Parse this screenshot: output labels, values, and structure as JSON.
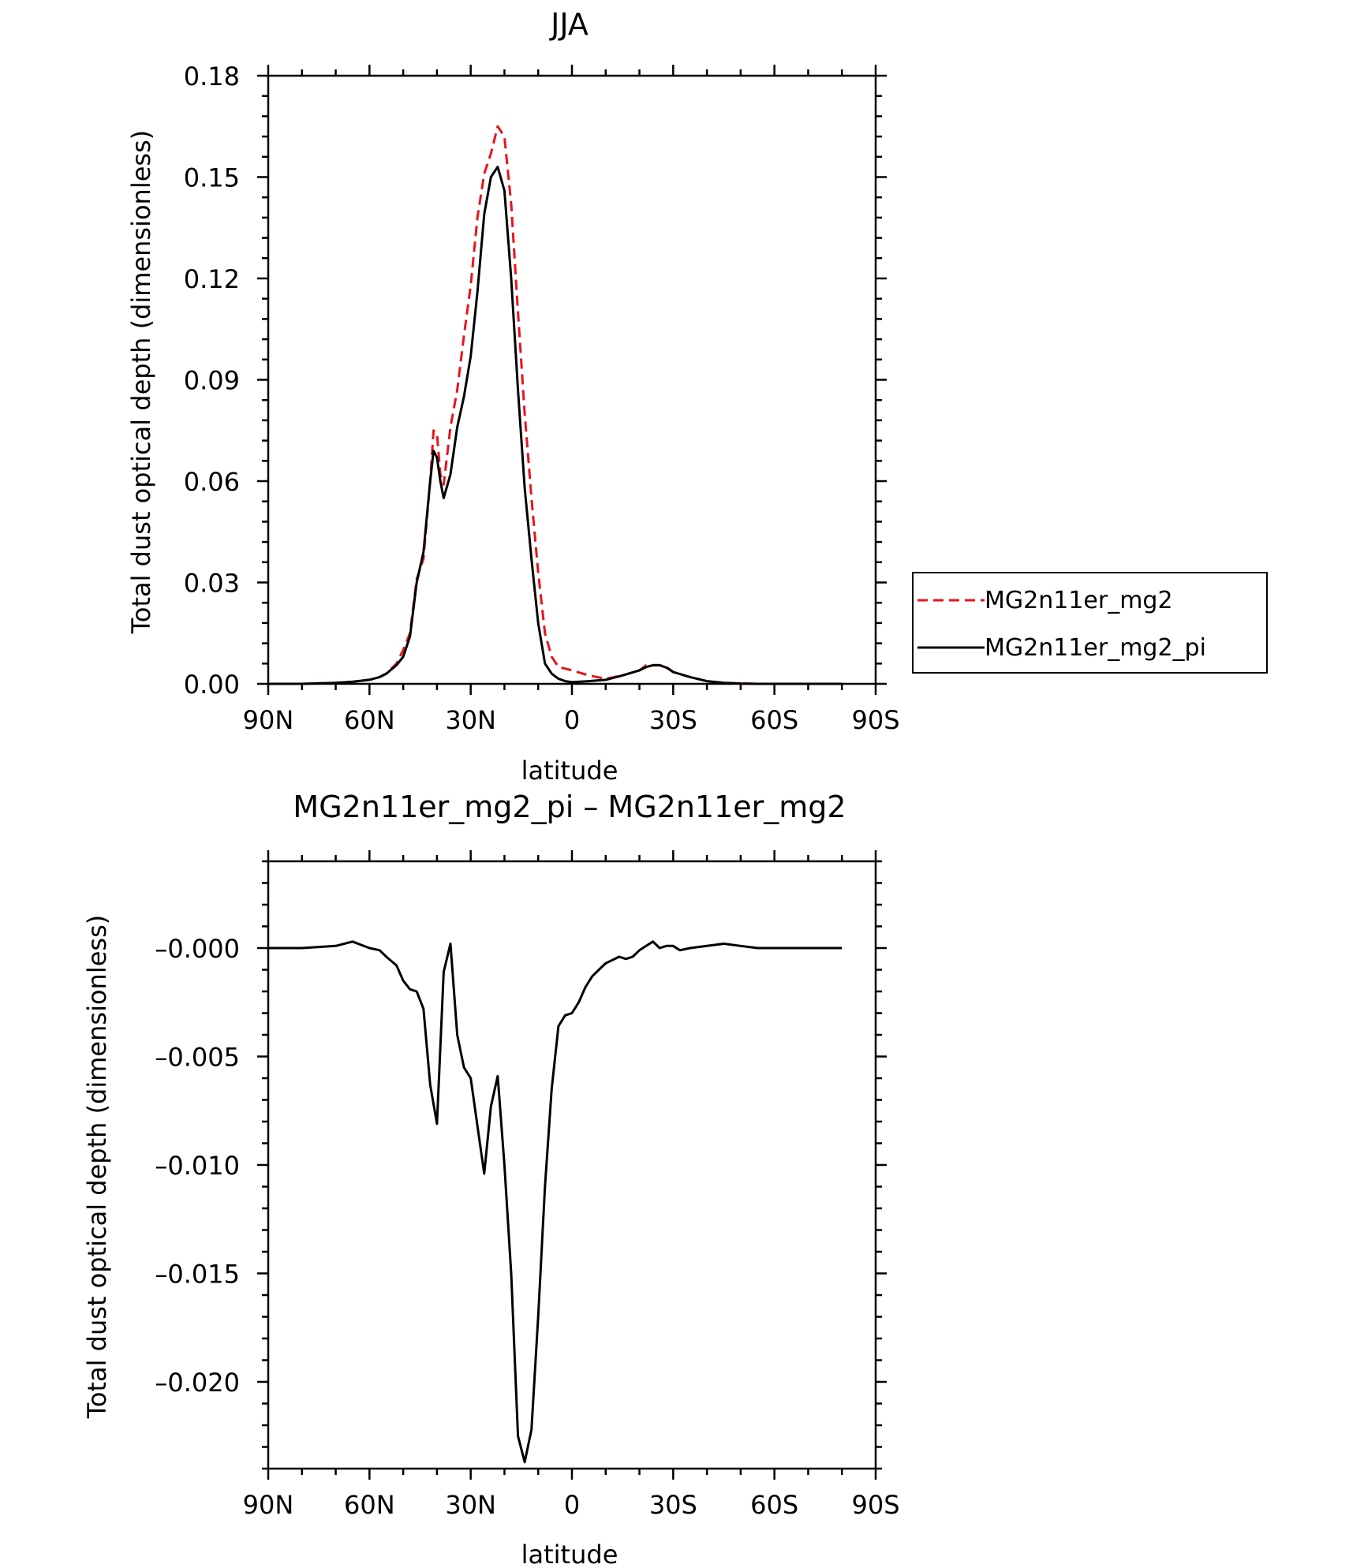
{
  "chart_data": [
    {
      "type": "line",
      "title": "JJA",
      "xlabel": "latitude",
      "ylabel": "Total dust optical depth (dimensionless)",
      "xlim": [
        -90,
        90
      ],
      "ylim": [
        0,
        0.18
      ],
      "xticks": [
        -90,
        -60,
        -30,
        0,
        30,
        60,
        90
      ],
      "xtick_labels": [
        "90N",
        "60N",
        "30N",
        "0",
        "30S",
        "60S",
        "90S"
      ],
      "yticks": [
        0,
        0.03,
        0.06,
        0.09,
        0.12,
        0.15,
        0.18
      ],
      "ytick_labels": [
        "0.00",
        "0.03",
        "0.06",
        "0.09",
        "0.12",
        "0.15",
        "0.18"
      ],
      "legend_position": "outside-right",
      "series": [
        {
          "name": "MG2n11er_mg2",
          "color": "#e8141b",
          "dash": "dashed",
          "x": [
            -90,
            -80,
            -70,
            -65,
            -60,
            -57,
            -55,
            -52,
            -50,
            -48,
            -46,
            -44,
            -42,
            -41,
            -40,
            -39,
            -38,
            -36,
            -34,
            -32,
            -30,
            -28,
            -26,
            -24,
            -22,
            -20,
            -18,
            -16,
            -14,
            -12,
            -10,
            -8,
            -6,
            -4,
            -2,
            0,
            5,
            10,
            15,
            20,
            22,
            24,
            26,
            28,
            30,
            35,
            40,
            45,
            50,
            55,
            60,
            70,
            80
          ],
          "values": [
            0.0,
            0.0,
            0.0003,
            0.0006,
            0.0012,
            0.002,
            0.003,
            0.006,
            0.01,
            0.015,
            0.031,
            0.037,
            0.06,
            0.075,
            0.074,
            0.062,
            0.059,
            0.076,
            0.087,
            0.103,
            0.118,
            0.138,
            0.151,
            0.157,
            0.165,
            0.162,
            0.142,
            0.11,
            0.08,
            0.055,
            0.033,
            0.015,
            0.008,
            0.005,
            0.0045,
            0.004,
            0.0025,
            0.0015,
            0.0025,
            0.004,
            0.0055,
            0.0055,
            0.0055,
            0.005,
            0.0035,
            0.002,
            0.0008,
            0.0003,
            0.0001,
            0.0,
            0.0,
            0.0,
            0.0
          ]
        },
        {
          "name": "MG2n11er_mg2_pi",
          "color": "#000000",
          "dash": "solid",
          "x": [
            -90,
            -80,
            -70,
            -65,
            -60,
            -57,
            -55,
            -52,
            -50,
            -48,
            -46,
            -44,
            -42,
            -41,
            -40,
            -39,
            -38,
            -36,
            -34,
            -32,
            -30,
            -28,
            -26,
            -24,
            -22,
            -20,
            -18,
            -16,
            -14,
            -12,
            -10,
            -8,
            -6,
            -4,
            -2,
            0,
            5,
            10,
            15,
            20,
            22,
            24,
            26,
            28,
            30,
            35,
            40,
            45,
            50,
            55,
            60,
            70,
            80
          ],
          "values": [
            0.0,
            0.0,
            0.0003,
            0.0006,
            0.0012,
            0.002,
            0.003,
            0.0055,
            0.008,
            0.014,
            0.03,
            0.039,
            0.06,
            0.069,
            0.067,
            0.06,
            0.055,
            0.062,
            0.076,
            0.085,
            0.097,
            0.116,
            0.139,
            0.15,
            0.153,
            0.146,
            0.12,
            0.087,
            0.058,
            0.037,
            0.018,
            0.006,
            0.003,
            0.0015,
            0.0008,
            0.0005,
            0.0008,
            0.0012,
            0.0025,
            0.004,
            0.005,
            0.0055,
            0.0055,
            0.0048,
            0.0035,
            0.002,
            0.0008,
            0.0003,
            0.0001,
            0.0,
            0.0,
            0.0,
            0.0
          ]
        }
      ]
    },
    {
      "type": "line",
      "title": "MG2n11er_mg2_pi – MG2n11er_mg2",
      "xlabel": "latitude",
      "ylabel": "Total dust optical depth (dimensionless)",
      "xlim": [
        -90,
        90
      ],
      "ylim": [
        -0.024,
        0.004
      ],
      "xticks": [
        -90,
        -60,
        -30,
        0,
        30,
        60,
        90
      ],
      "xtick_labels": [
        "90N",
        "60N",
        "30N",
        "0",
        "30S",
        "60S",
        "90S"
      ],
      "yticks": [
        0.0,
        -0.005,
        -0.01,
        -0.015,
        -0.02
      ],
      "ytick_labels": [
        "–0.000",
        "–0.005",
        "–0.010",
        "–0.015",
        "–0.020"
      ],
      "series": [
        {
          "name": "",
          "color": "#000000",
          "dash": "solid",
          "x": [
            -90,
            -80,
            -70,
            -65,
            -60,
            -57,
            -55,
            -52,
            -50,
            -48,
            -46,
            -44,
            -42,
            -40,
            -38,
            -36,
            -34,
            -32,
            -30,
            -28,
            -26,
            -24,
            -22,
            -20,
            -18,
            -16,
            -14,
            -12,
            -10,
            -8,
            -6,
            -4,
            -2,
            0,
            2,
            4,
            6,
            8,
            10,
            14,
            16,
            18,
            20,
            22,
            24,
            26,
            28,
            30,
            32,
            35,
            40,
            45,
            50,
            55,
            60,
            70,
            80
          ],
          "values": [
            0.0,
            0.0,
            0.0001,
            0.0003,
            0.0,
            -0.0001,
            -0.0004,
            -0.0008,
            -0.0015,
            -0.0019,
            -0.002,
            -0.0028,
            -0.0063,
            -0.0081,
            -0.0011,
            0.0002,
            -0.004,
            -0.0055,
            -0.006,
            -0.0082,
            -0.0104,
            -0.0073,
            -0.0059,
            -0.01,
            -0.015,
            -0.0225,
            -0.0237,
            -0.0222,
            -0.017,
            -0.011,
            -0.0065,
            -0.0036,
            -0.0031,
            -0.003,
            -0.0025,
            -0.0018,
            -0.0013,
            -0.001,
            -0.0007,
            -0.0004,
            -0.0005,
            -0.0004,
            -0.0001,
            0.0001,
            0.0003,
            0.0,
            0.0001,
            0.0001,
            -0.0001,
            0.0,
            0.0001,
            0.0002,
            0.0001,
            0.0,
            0.0,
            0.0,
            0.0
          ]
        }
      ]
    }
  ]
}
